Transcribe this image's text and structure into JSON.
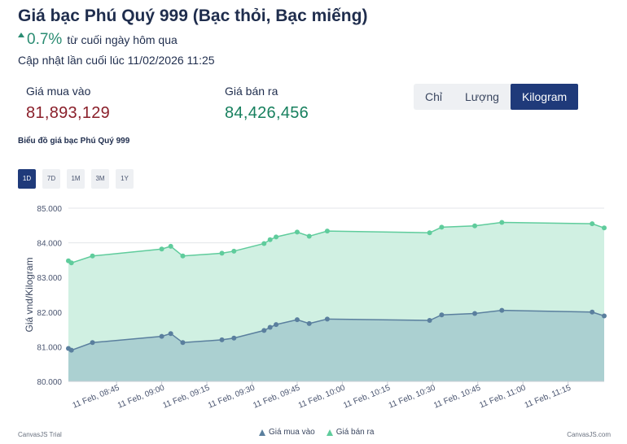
{
  "header": {
    "title": "Giá bạc Phú Quý 999 (Bạc thỏi, Bạc miếng)",
    "change_value": "0.7%",
    "change_text": "từ cuối ngày hôm qua",
    "updated": "Cập nhật lần cuối lúc 11/02/2026 11:25"
  },
  "prices": {
    "buy_label": "Giá mua vào",
    "buy_value": "81,893,129",
    "sell_label": "Giá bán ra",
    "sell_value": "84,426,456"
  },
  "units": {
    "options": [
      "Chỉ",
      "Lượng",
      "Kilogram"
    ],
    "selected": "Kilogram"
  },
  "chart_label": "Biểu đồ giá bạc Phú Quý 999",
  "ranges": {
    "options": [
      "1D",
      "7D",
      "1M",
      "3M",
      "1Y"
    ],
    "selected": "1D"
  },
  "footer": {
    "left": "CanvasJS Trial",
    "right": "CanvasJS.com"
  },
  "colors": {
    "buy_line": "#5a7f9e",
    "buy_fill": "#a9cdd0",
    "sell_line": "#5fcc9c",
    "sell_fill": "#d0f0e2",
    "accent": "#1f3a7a"
  },
  "chart_data": {
    "type": "area",
    "ylabel": "Giá vnd/Kilogram",
    "ylim": [
      80000,
      85000
    ],
    "yticks": [
      "80.000",
      "81.000",
      "82.000",
      "83.000",
      "84.000",
      "85.000"
    ],
    "ytick_values": [
      80000,
      81000,
      82000,
      83000,
      84000,
      85000
    ],
    "xlim": [
      "08:29",
      "11:27"
    ],
    "xticks": [
      "11 Feb, 08:45",
      "11 Feb, 09:00",
      "11 Feb, 09:15",
      "11 Feb, 09:30",
      "11 Feb, 09:45",
      "11 Feb, 10:00",
      "11 Feb, 10:15",
      "11 Feb, 10:30",
      "11 Feb, 10:45",
      "11 Feb, 11:00",
      "11 Feb, 11:15"
    ],
    "xtick_times": [
      "08:45",
      "09:00",
      "09:15",
      "09:30",
      "09:45",
      "10:00",
      "10:15",
      "10:30",
      "10:45",
      "11:00",
      "11:15"
    ],
    "grid": true,
    "legend": "bottom",
    "series": [
      {
        "name": "Giá mua vào",
        "x": [
          "08:29",
          "08:30",
          "08:37",
          "09:00",
          "09:03",
          "09:07",
          "09:20",
          "09:24",
          "09:34",
          "09:36",
          "09:38",
          "09:45",
          "09:49",
          "09:55",
          "10:29",
          "10:33",
          "10:44",
          "10:53",
          "11:23",
          "11:27"
        ],
        "values": [
          80950,
          80900,
          81120,
          81300,
          81380,
          81120,
          81200,
          81250,
          81470,
          81560,
          81640,
          81780,
          81670,
          81800,
          81760,
          81920,
          81960,
          82050,
          82000,
          81890
        ]
      },
      {
        "name": "Giá bán ra",
        "x": [
          "08:29",
          "08:30",
          "08:37",
          "09:00",
          "09:03",
          "09:07",
          "09:20",
          "09:24",
          "09:34",
          "09:36",
          "09:38",
          "09:45",
          "09:49",
          "09:55",
          "10:29",
          "10:33",
          "10:44",
          "10:53",
          "11:23",
          "11:27"
        ],
        "values": [
          83480,
          83420,
          83620,
          83820,
          83900,
          83620,
          83700,
          83760,
          83980,
          84090,
          84170,
          84310,
          84190,
          84340,
          84290,
          84450,
          84490,
          84590,
          84550,
          84430
        ]
      }
    ]
  }
}
